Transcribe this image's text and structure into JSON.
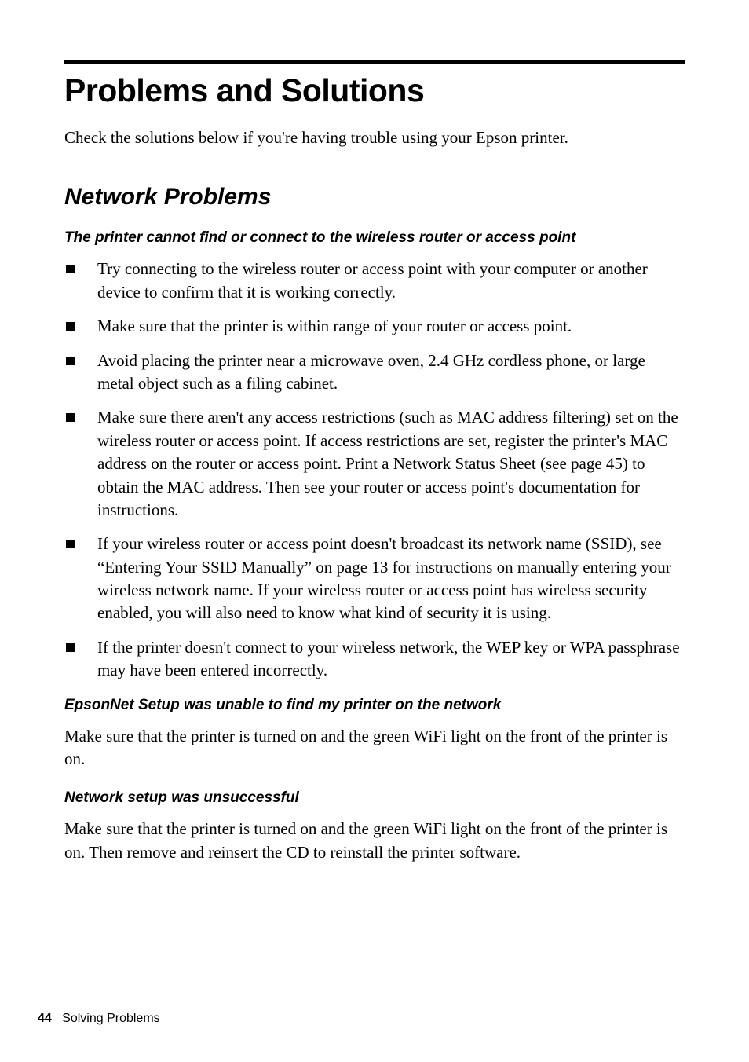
{
  "page": {
    "title": "Problems and Solutions",
    "intro": "Check the solutions below if you're having trouble using your Epson printer.",
    "section_title": "Network Problems",
    "sub1": {
      "heading": "The printer cannot find or connect to the wireless router or access point",
      "items": [
        "Try connecting to the wireless router or access point with your computer or another device to confirm that it is working correctly.",
        "Make sure that the printer is within range of your router or access point.",
        "Avoid placing the printer near a microwave oven, 2.4 GHz cordless phone, or large metal object such as a filing cabinet.",
        "Make sure there aren't any access restrictions (such as MAC address filtering) set on the wireless router or access point. If access restrictions are set, register the printer's MAC address on the router or access point. Print a Network Status Sheet (see page 45) to obtain the MAC address. Then see your router or access point's documentation for instructions.",
        "If your wireless router or access point doesn't broadcast its network name (SSID), see “Entering Your SSID Manually” on page 13 for instructions on manually entering your wireless network name. If your wireless router or access point has wireless security enabled, you will also need to know what kind of security it is using.",
        "If the printer doesn't connect to your wireless network, the WEP key or WPA passphrase may have been entered incorrectly."
      ]
    },
    "sub2": {
      "heading": "EpsonNet Setup was unable to find my printer on the network",
      "body": "Make sure that the printer is turned on and the green WiFi light on the front of the printer is on."
    },
    "sub3": {
      "heading": "Network setup was unsuccessful",
      "body": "Make sure that the printer is turned on and the green WiFi light on the front of the printer is on. Then remove and reinsert the CD to reinstall the printer software."
    },
    "footer": {
      "page_number": "44",
      "chapter": "Solving Problems"
    }
  }
}
